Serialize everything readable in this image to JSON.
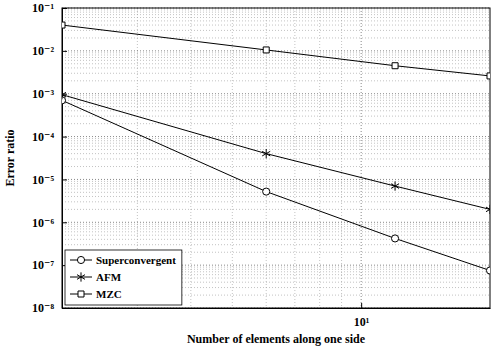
{
  "chart_data": {
    "type": "line",
    "x_label": "Number of elements along one side",
    "y_label": "Error ratio",
    "x": [
      2,
      6,
      12,
      20
    ],
    "series": [
      {
        "name": "Superconvergent",
        "color": "#000000",
        "marker": "circle",
        "line_style": "solid",
        "values": [
          0.0007,
          5.2e-06,
          4.2e-07,
          7.5e-08
        ]
      },
      {
        "name": "AFM",
        "color": "#000000",
        "marker": "asterisk",
        "line_style": "solid",
        "values": [
          0.00095,
          4e-05,
          7e-06,
          2e-06
        ]
      },
      {
        "name": "MZC",
        "color": "#000000",
        "marker": "square",
        "line_style": "solid",
        "values": [
          0.04,
          0.0105,
          0.0045,
          0.0026
        ]
      }
    ],
    "xlim": [
      2,
      20
    ],
    "ylim": [
      1e-08,
      0.1
    ],
    "xticks": [
      {
        "value": 10,
        "label": "10¹"
      }
    ],
    "yticks": [
      {
        "value": 1e-08,
        "label": "10⁻⁸"
      },
      {
        "value": 1e-07,
        "label": "10⁻⁷"
      },
      {
        "value": 1e-06,
        "label": "10⁻⁶"
      },
      {
        "value": 1e-05,
        "label": "10⁻⁵"
      },
      {
        "value": 0.0001,
        "label": "10⁻⁴"
      },
      {
        "value": 0.001,
        "label": "10⁻³"
      },
      {
        "value": 0.01,
        "label": "10⁻²"
      },
      {
        "value": 0.1,
        "label": "10⁻¹"
      }
    ],
    "log": true,
    "grid": true,
    "legend": "lower left"
  }
}
